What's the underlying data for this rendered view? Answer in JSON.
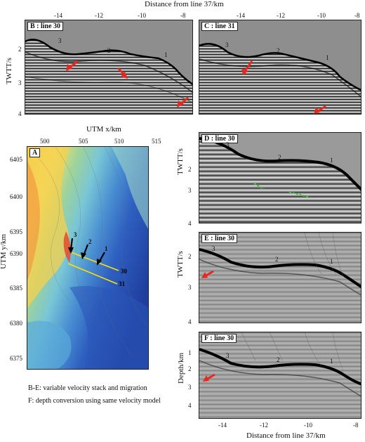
{
  "top_axis": {
    "title": "Distance from line 37/km",
    "ticks": [
      "-14",
      "-12",
      "-10",
      "-8"
    ]
  },
  "bottom_axis": {
    "title": "Distance from line 37/km",
    "ticks": [
      "-14",
      "-12",
      "-10",
      "-8"
    ]
  },
  "panel_b": {
    "label": "B : line 30",
    "ylabel": "TWTT/s",
    "yticks": [
      "2",
      "3",
      "4"
    ],
    "markers": [
      "3",
      "2",
      "1"
    ]
  },
  "panel_c": {
    "label": "C : line 31",
    "markers": [
      "3",
      "2",
      "1"
    ]
  },
  "panel_a": {
    "label": "A",
    "xlabel": "UTM x/km",
    "ylabel": "UTM y/km",
    "xticks": [
      "500",
      "505",
      "510",
      "515"
    ],
    "yticks": [
      "6405",
      "6400",
      "6395",
      "6390",
      "6385",
      "6380",
      "6375"
    ],
    "markers": [
      "3",
      "2",
      "1"
    ],
    "line_labels": [
      "30",
      "31"
    ]
  },
  "panel_d": {
    "label": "D : line 30",
    "ylabel": "TWTT/s",
    "yticks": [
      "2",
      "3",
      "4"
    ],
    "markers": [
      "3",
      "2",
      "1"
    ]
  },
  "panel_e": {
    "label": "E : line 30",
    "ylabel": "TWTT/s",
    "yticks": [
      "2",
      "3",
      "4"
    ],
    "markers": [
      "3",
      "2",
      "1"
    ]
  },
  "panel_f": {
    "label": "F : line 30",
    "ylabel": "Depth/km",
    "yticks": [
      "1",
      "2",
      "3",
      "4"
    ],
    "markers": [
      "3",
      "2",
      "1"
    ]
  },
  "caption": {
    "line1": "B-E: variable velocity stack and migration",
    "line2": "F: depth conversion using same velocity model"
  },
  "colors": {
    "arrow": "#e8281e",
    "seabed": "#000000",
    "green_horizon": "#3fbf3f",
    "track_line": "#ffe100"
  }
}
